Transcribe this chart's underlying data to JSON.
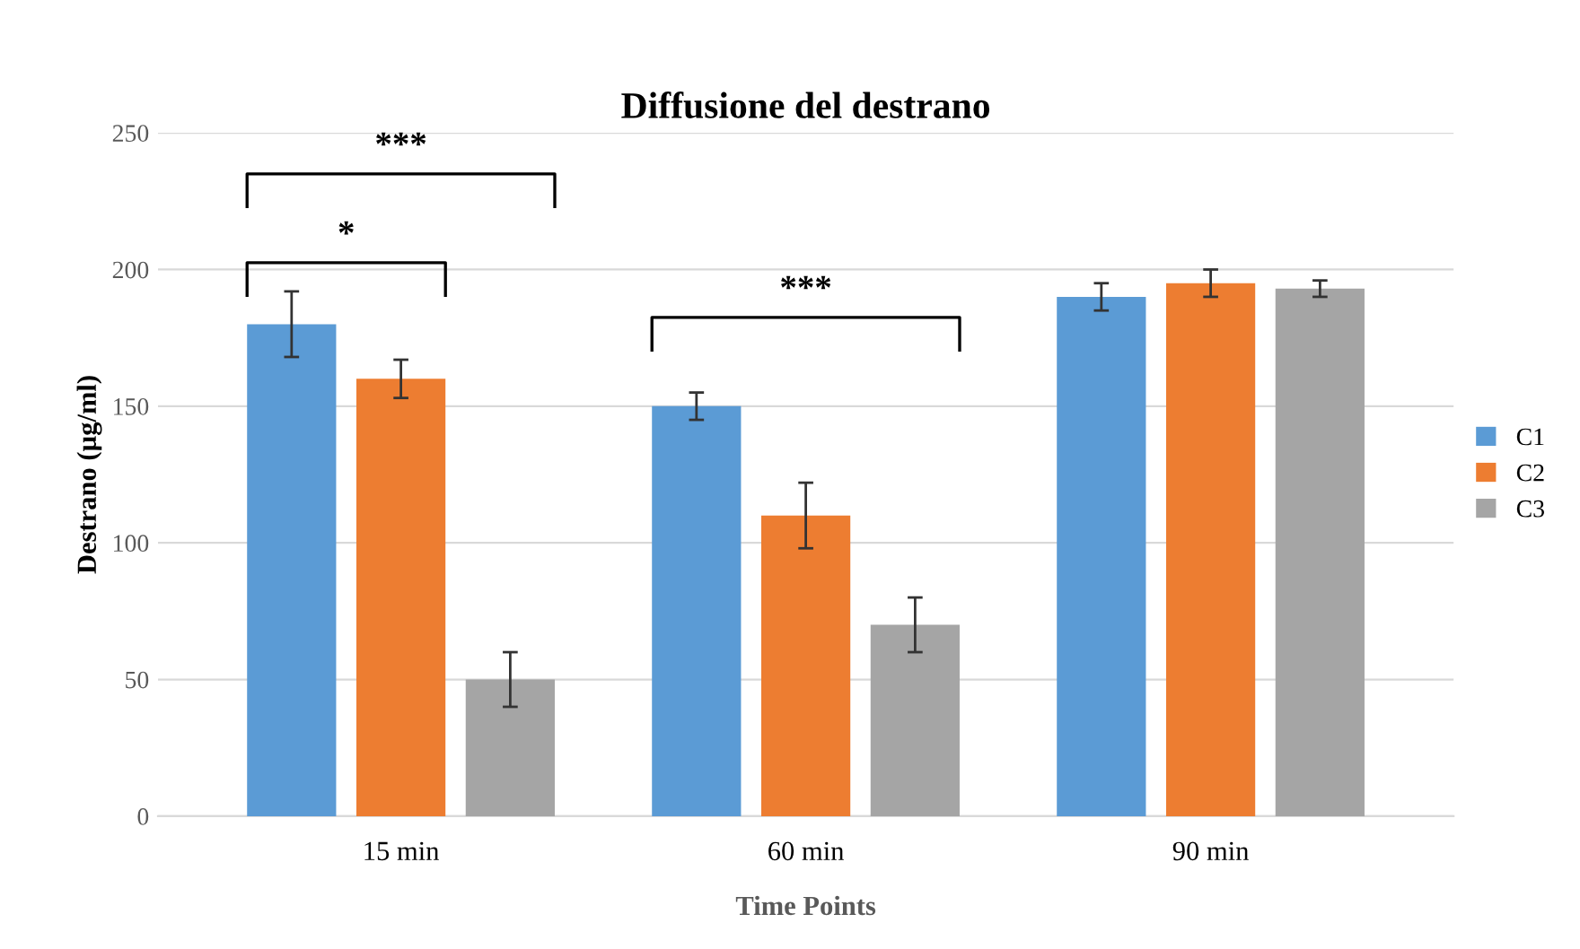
{
  "chart_data": {
    "type": "bar",
    "title": "Diffusione del destrano",
    "xlabel": "Time Points",
    "ylabel": "Destrano (µg/ml)",
    "categories": [
      "15 min",
      "60 min",
      "90 min"
    ],
    "series": [
      {
        "name": "C1",
        "color": "#5b9bd5",
        "values": [
          180,
          150,
          190
        ],
        "errors": [
          12,
          5,
          5
        ]
      },
      {
        "name": "C2",
        "color": "#ed7d31",
        "values": [
          160,
          110,
          195
        ],
        "errors": [
          7,
          12,
          5
        ]
      },
      {
        "name": "C3",
        "color": "#a5a5a5",
        "values": [
          50,
          70,
          193
        ],
        "errors": [
          10,
          10,
          3
        ]
      }
    ],
    "ylim": [
      0,
      250
    ],
    "yticks": [
      0,
      50,
      100,
      150,
      200,
      250
    ],
    "grid": "y",
    "legend": "right",
    "annotations": [
      "***",
      "*",
      "***"
    ]
  }
}
